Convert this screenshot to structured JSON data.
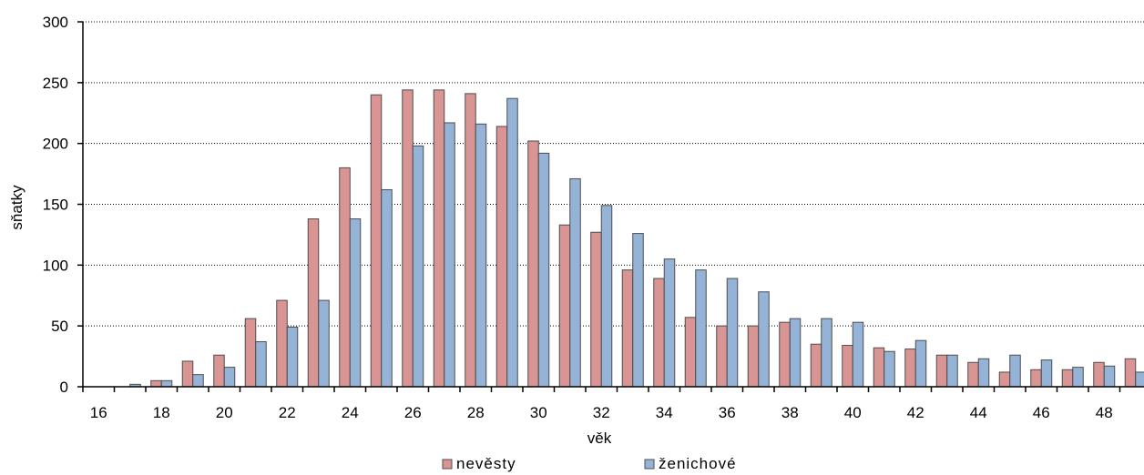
{
  "chart_data": {
    "type": "bar",
    "title": "",
    "xlabel": "věk",
    "ylabel": "sňatky",
    "ylim": [
      0,
      300
    ],
    "yticks": [
      0,
      50,
      100,
      150,
      200,
      250,
      300
    ],
    "grid": true,
    "legend_position": "bottom",
    "categories": [
      16,
      17,
      18,
      19,
      20,
      21,
      22,
      23,
      24,
      25,
      26,
      27,
      28,
      29,
      30,
      31,
      32,
      33,
      34,
      35,
      36,
      37,
      38,
      39,
      40,
      41,
      42,
      43,
      44,
      45,
      46,
      47,
      48,
      49
    ],
    "x_tick_labels": [
      "16",
      "18",
      "20",
      "22",
      "24",
      "26",
      "28",
      "30",
      "32",
      "34",
      "36",
      "38",
      "40",
      "42",
      "44",
      "46",
      "48"
    ],
    "series": [
      {
        "name": "nevěsty",
        "color": "#D99594",
        "values": [
          0,
          0,
          5,
          21,
          26,
          56,
          71,
          138,
          180,
          240,
          244,
          244,
          241,
          214,
          202,
          133,
          127,
          96,
          89,
          57,
          50,
          50,
          53,
          35,
          34,
          32,
          31,
          26,
          20,
          12,
          14,
          14,
          20,
          23
        ]
      },
      {
        "name": "ženichové",
        "color": "#95B3D7",
        "values": [
          0,
          2,
          5,
          10,
          16,
          37,
          49,
          71,
          138,
          162,
          198,
          217,
          216,
          237,
          192,
          171,
          149,
          126,
          105,
          96,
          89,
          78,
          56,
          56,
          53,
          29,
          38,
          26,
          23,
          26,
          22,
          16,
          17,
          12
        ]
      }
    ]
  }
}
